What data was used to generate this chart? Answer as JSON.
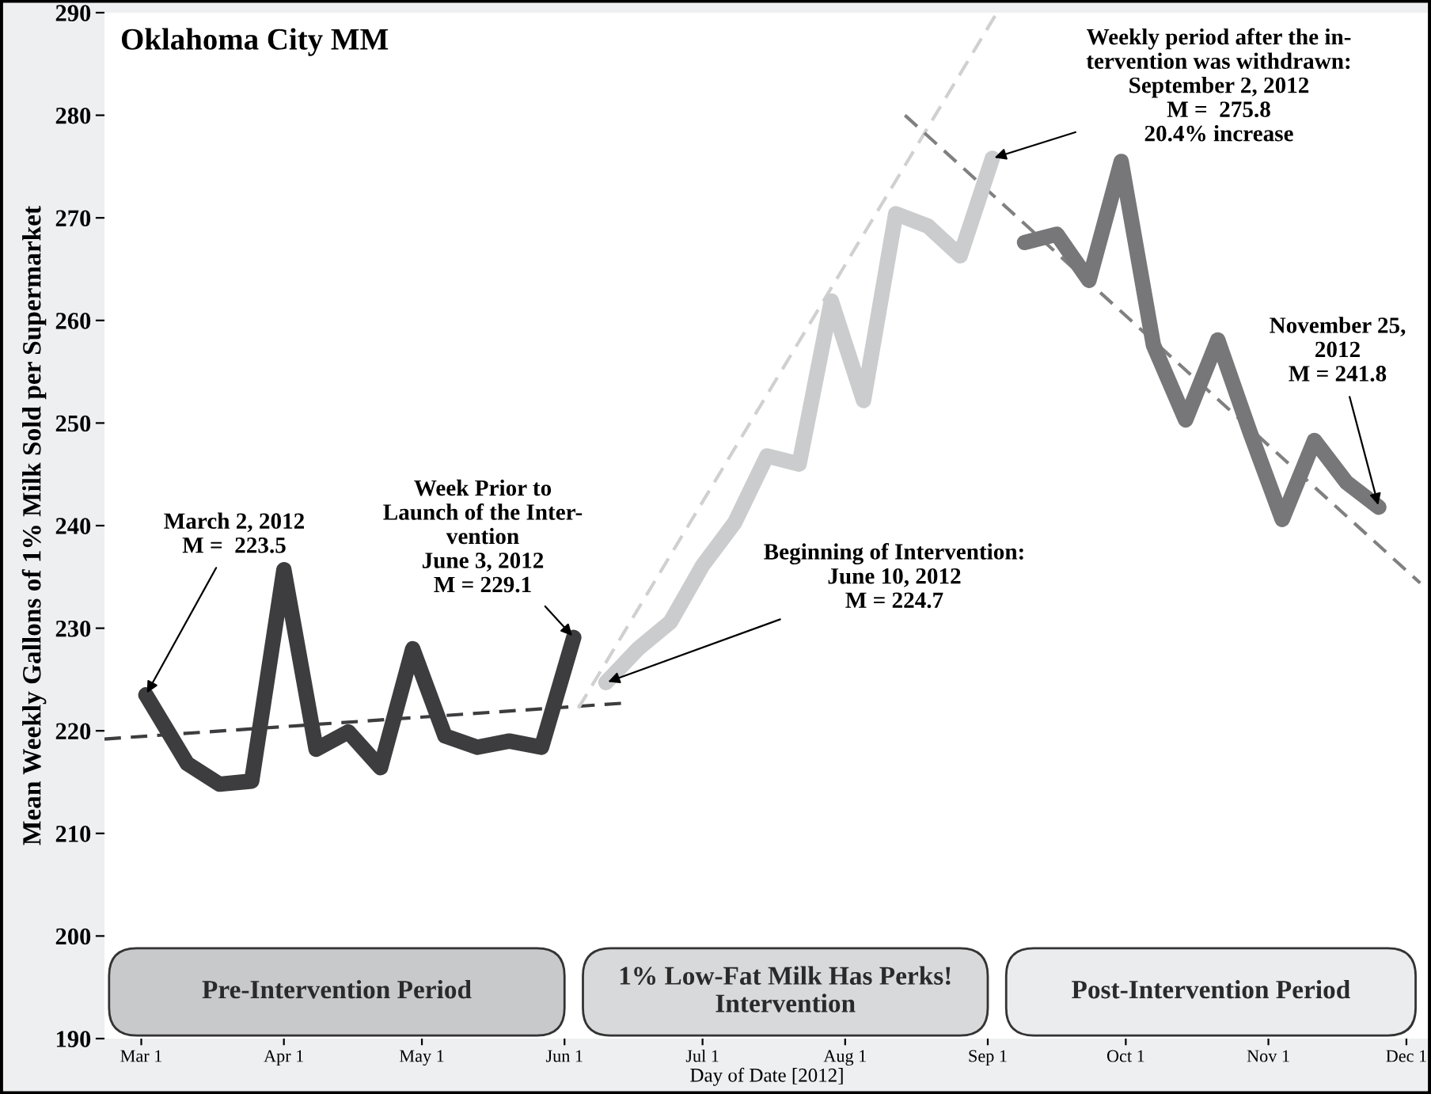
{
  "chart_data": {
    "type": "line",
    "title": "Oklahoma City MM",
    "xlabel": "Day of Date [2012]",
    "ylabel": "Mean Weekly Gallons of 1% Milk Sold per Supermarket",
    "x": [
      "2012-03-02",
      "2012-03-11",
      "2012-03-18",
      "2012-03-25",
      "2012-04-01",
      "2012-04-08",
      "2012-04-15",
      "2012-04-22",
      "2012-04-29",
      "2012-05-06",
      "2012-05-13",
      "2012-05-20",
      "2012-05-27",
      "2012-06-03"
    ],
    "series": [
      {
        "color": "#3d3d3f",
        "values": [
          223.5,
          216.8,
          214.8,
          215.1,
          235.7,
          218.2,
          219.9,
          216.4,
          228.0,
          219.5,
          218.4,
          219.0,
          218.4,
          229.1
        ]
      },
      {
        "color": "#cbcccd",
        "x": [
          "2012-06-10",
          "2012-06-17",
          "2012-06-24",
          "2012-07-01",
          "2012-07-08",
          "2012-07-15",
          "2012-07-22",
          "2012-07-29",
          "2012-08-05",
          "2012-08-12",
          "2012-08-19",
          "2012-08-26",
          "2012-09-02"
        ],
        "values": [
          224.7,
          228.0,
          230.6,
          236.1,
          240.3,
          246.8,
          246.0,
          261.9,
          252.2,
          270.4,
          269.2,
          266.3,
          275.8
        ]
      },
      {
        "color": "#77777a",
        "x": [
          "2012-09-09",
          "2012-09-16",
          "2012-09-23",
          "2012-09-30",
          "2012-10-07",
          "2012-10-14",
          "2012-10-21",
          "2012-10-28",
          "2012-11-04",
          "2012-11-11",
          "2012-11-18",
          "2012-11-25"
        ],
        "values": [
          267.6,
          268.4,
          263.9,
          275.5,
          257.6,
          250.3,
          258.1,
          249.1,
          240.6,
          248.3,
          244.2,
          241.8
        ]
      },
      {
        "type": "line",
        "line_style": "dashed",
        "color": "#3d3d3f",
        "x": [
          "2012-02-22",
          "2012-06-14"
        ],
        "values": [
          219.2,
          222.7
        ]
      },
      {
        "type": "line",
        "line_style": "dashed",
        "color": "#d0d0d0",
        "x": [
          "2012-06-04",
          "2012-09-03"
        ],
        "values": [
          222.2,
          290.0
        ]
      },
      {
        "type": "line",
        "line_style": "dashed",
        "color": "#808080",
        "x": [
          "2012-08-14",
          "2012-12-04"
        ],
        "values": [
          280.0,
          234.4
        ]
      }
    ],
    "xlim": [
      "2012-02-22",
      "2012-12-06"
    ],
    "ylim": [
      190,
      290
    ],
    "xticks": [
      {
        "value": "2012-03-01",
        "label": "Mar 1"
      },
      {
        "value": "2012-04-01",
        "label": "Apr 1"
      },
      {
        "value": "2012-05-01",
        "label": "May 1"
      },
      {
        "value": "2012-06-01",
        "label": "Jun 1"
      },
      {
        "value": "2012-07-01",
        "label": "Jul 1"
      },
      {
        "value": "2012-08-01",
        "label": "Aug 1"
      },
      {
        "value": "2012-09-01",
        "label": "Sep 1"
      },
      {
        "value": "2012-10-01",
        "label": "Oct 1"
      },
      {
        "value": "2012-11-01",
        "label": "Nov 1"
      },
      {
        "value": "2012-12-01",
        "label": "Dec 1"
      }
    ],
    "yticks": [
      190,
      200,
      210,
      220,
      230,
      240,
      250,
      260,
      270,
      280,
      290
    ],
    "bands": [
      {
        "axis": "x",
        "from": "2012-02-22",
        "to": "2012-06-02",
        "label": "Pre-Intervention Period",
        "color": "#c8c9cb"
      },
      {
        "axis": "x",
        "from": "2012-06-04",
        "to": "2012-09-02",
        "label": "1% Low-Fat Milk Has Perks!\nIntervention",
        "color": "#d8d9db"
      },
      {
        "axis": "x",
        "from": "2012-09-04",
        "to": "2012-12-04",
        "label": "Post-Intervention Period",
        "color": "#ebecee"
      }
    ],
    "annotations": [
      {
        "text": "March 2, 2012\nM =  223.5",
        "x": "2012-03-02",
        "y": 223.5
      },
      {
        "text": "Week Prior to\nLaunch of the Inter-\nvention\nJune 3, 2012\nM = 229.1",
        "x": "2012-06-03",
        "y": 229.1
      },
      {
        "text": "Beginning of Intervention:\nJune 10, 2012\nM = 224.7",
        "x": "2012-06-10",
        "y": 224.7
      },
      {
        "text": "Weekly period after the in-\ntervention was withdrawn:\nSeptember 2, 2012\nM =  275.8\n20.4% increase",
        "x": "2012-09-02",
        "y": 275.8
      },
      {
        "text": "November 25,\n2012\nM = 241.8",
        "x": "2012-11-25",
        "y": 241.8
      }
    ],
    "grid": false,
    "legend": false,
    "marker": "none"
  }
}
